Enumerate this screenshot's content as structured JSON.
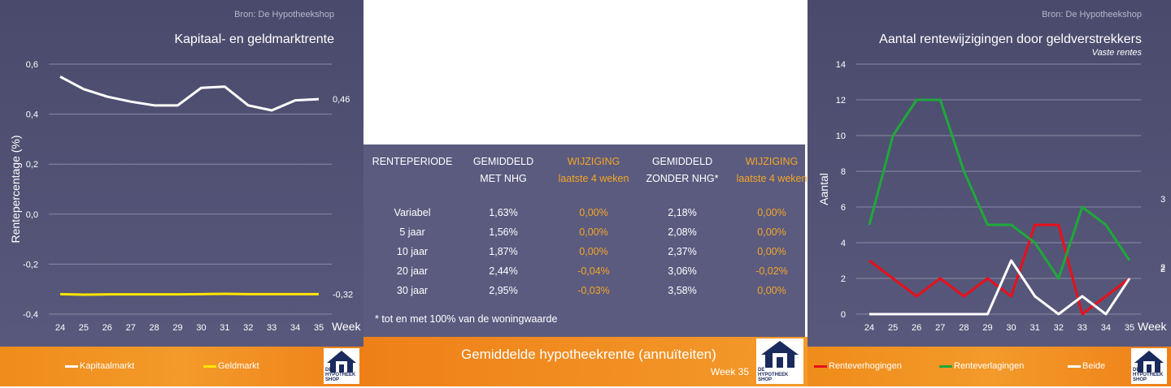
{
  "left_chart": {
    "source": "Bron: De Hypotheekshop",
    "chart_data": {
      "type": "line",
      "title": "Kapitaal- en geldmarktrente",
      "xlabel": "Week",
      "ylabel": "Rentepercentage (%)",
      "ylim": [
        -0.4,
        0.6
      ],
      "yticks": [
        "0,6",
        "0,4",
        "0,2",
        "0,0",
        "-0,2",
        "-0,4"
      ],
      "ytick_values": [
        0.6,
        0.4,
        0.2,
        0.0,
        -0.2,
        -0.4
      ],
      "x": [
        "24",
        "25",
        "26",
        "27",
        "28",
        "29",
        "30",
        "31",
        "32",
        "33",
        "34",
        "35"
      ],
      "grid": true,
      "legend": "bottom",
      "series": [
        {
          "name": "Kapitaalmarkt",
          "color": "#ffffff",
          "values": [
            0.55,
            0.5,
            0.47,
            0.45,
            0.435,
            0.435,
            0.505,
            0.51,
            0.435,
            0.415,
            0.455,
            0.46
          ],
          "end_label": "0,46"
        },
        {
          "name": "Geldmarkt",
          "color": "#ffe600",
          "values": [
            -0.32,
            -0.322,
            -0.321,
            -0.321,
            -0.321,
            -0.321,
            -0.32,
            -0.319,
            -0.32,
            -0.32,
            -0.32,
            -0.32
          ],
          "end_label": "-0,32"
        }
      ]
    }
  },
  "table": {
    "headers": [
      {
        "line1": "RENTEPERIODE",
        "line2": "",
        "orange": false
      },
      {
        "line1": "GEMIDDELD",
        "line2": "MET NHG",
        "orange": false
      },
      {
        "line1": "WIJZIGING",
        "line2": "laatste 4 weken",
        "orange": true
      },
      {
        "line1": "GEMIDDELD",
        "line2": "ZONDER NHG*",
        "orange": false
      },
      {
        "line1": "WIJZIGING",
        "line2": "laatste 4 weken",
        "orange": true
      }
    ],
    "rows": [
      [
        "Variabel",
        "1,63%",
        "0,00%",
        "2,18%",
        "0,00%"
      ],
      [
        "5 jaar",
        "1,56%",
        "0,00%",
        "2,08%",
        "0,00%"
      ],
      [
        "10 jaar",
        "1,87%",
        "0,00%",
        "2,37%",
        "0,00%"
      ],
      [
        "20 jaar",
        "2,44%",
        "-0,04%",
        "3,06%",
        "-0,02%"
      ],
      [
        "30 jaar",
        "2,95%",
        "-0,03%",
        "3,58%",
        "0,00%"
      ]
    ],
    "footnote": "* tot en met 100% van de woningwaarde",
    "title": "Gemiddelde hypotheekrente (annuïteiten)",
    "week": "Week 35"
  },
  "right_chart": {
    "source": "Bron: De Hypotheekshop",
    "chart_data": {
      "type": "line",
      "title": "Aantal rentewijzigingen door geldverstrekkers",
      "subtitle": "Vaste rentes",
      "xlabel": "Week",
      "ylabel": "Aantal",
      "ylim": [
        0,
        14
      ],
      "yticks": [
        "14",
        "12",
        "10",
        "8",
        "6",
        "4",
        "2",
        "0"
      ],
      "ytick_values": [
        14,
        12,
        10,
        8,
        6,
        4,
        2,
        0
      ],
      "x": [
        "24",
        "25",
        "26",
        "27",
        "28",
        "29",
        "30",
        "31",
        "32",
        "33",
        "34",
        "35"
      ],
      "grid": true,
      "legend": "bottom",
      "series": [
        {
          "name": "Renteverhogingen",
          "color": "#e8101a",
          "values": [
            3,
            2,
            1,
            2,
            1,
            2,
            1,
            5,
            5,
            0,
            1,
            2
          ],
          "end_label": "2"
        },
        {
          "name": "Renteverlagingen",
          "color": "#1fa83a",
          "values": [
            5,
            10,
            12,
            12,
            8,
            5,
            5,
            4,
            2,
            6,
            5,
            3
          ],
          "end_label": "3"
        },
        {
          "name": "Beide",
          "color": "#ffffff",
          "values": [
            0,
            0,
            0,
            0,
            0,
            0,
            3,
            1,
            0,
            1,
            0,
            2
          ],
          "end_label": "2"
        }
      ]
    }
  },
  "logo": {
    "line1": "DE",
    "line2": "HYPOTHEEK",
    "line3": "SHOP"
  }
}
